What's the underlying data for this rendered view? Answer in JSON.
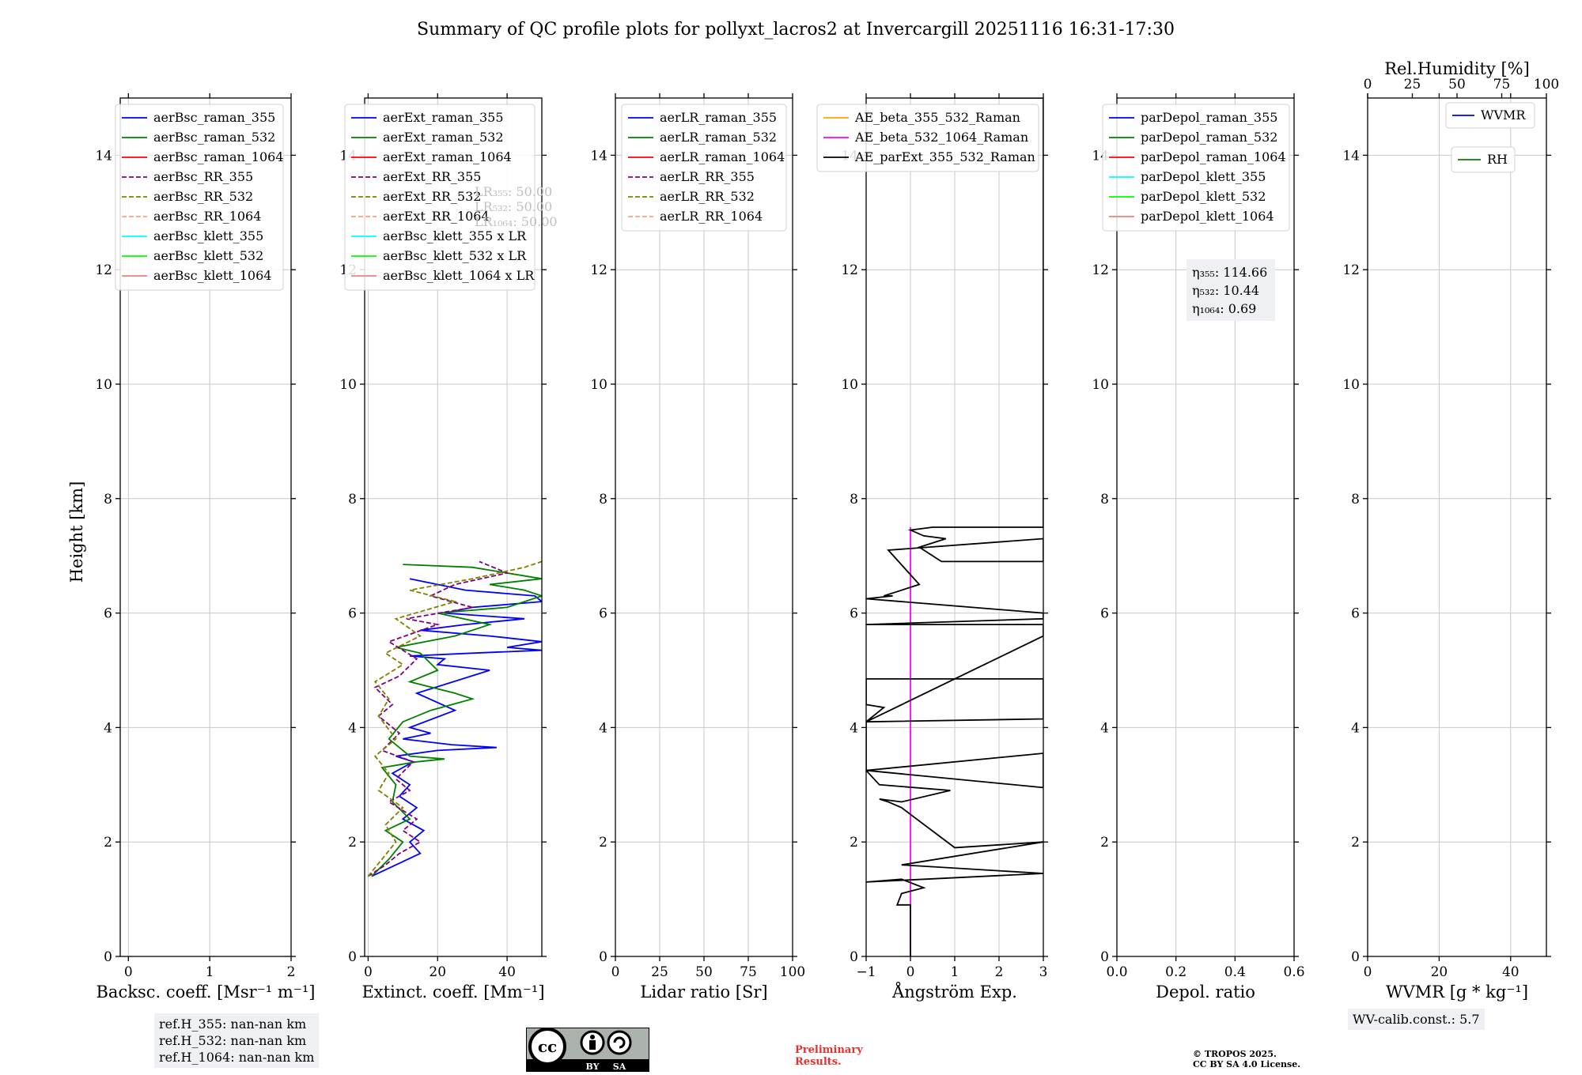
{
  "title": "Summary of QC profile plots for pollyxt_lacros2 at Invercargill 20251116 16:31-17:30",
  "ylabel": "Height [km]",
  "colors": {
    "raman_355": "#0000ff",
    "raman_532": "#008000",
    "raman_1064": "#ff0000",
    "rr_355": "#800080",
    "rr_532": "#808000",
    "rr_1064": "#ffa07a",
    "klett_355": "#00ffff",
    "klett_532": "#00ff00",
    "klett_1064": "#f08080",
    "ae_1": "#ffa500",
    "ae_2": "#ff00ff",
    "ae_3": "#000000"
  },
  "chart_data": [
    {
      "type": "line",
      "name": "backscatter",
      "xlabel": "Backsc. coeff. [Msr⁻¹ m⁻¹]",
      "xlim": [
        -0.1,
        2.0
      ],
      "ylim": [
        0,
        15
      ],
      "xticks": [
        0,
        1,
        2
      ],
      "yticks": [
        0,
        2,
        4,
        6,
        8,
        10,
        12,
        14
      ],
      "legend": [
        "aerBsc_raman_355",
        "aerBsc_raman_532",
        "aerBsc_raman_1064",
        "aerBsc_RR_355",
        "aerBsc_RR_532",
        "aerBsc_RR_1064",
        "aerBsc_klett_355",
        "aerBsc_klett_532",
        "aerBsc_klett_1064"
      ],
      "series": []
    },
    {
      "type": "line",
      "name": "extinction",
      "xlabel": "Extinct. coeff. [Mm⁻¹]",
      "xlim": [
        -1,
        50
      ],
      "ylim": [
        0,
        15
      ],
      "xticks": [
        0,
        20,
        40
      ],
      "yticks": [
        0,
        2,
        4,
        6,
        8,
        10,
        12,
        14
      ],
      "legend": [
        "aerExt_raman_355",
        "aerExt_raman_532",
        "aerExt_raman_1064",
        "aerExt_RR_355",
        "aerExt_RR_532",
        "aerExt_RR_1064",
        "aerBsc_klett_355 x LR",
        "aerBsc_klett_532 x LR",
        "aerBsc_klett_1064 x LR"
      ],
      "lr_labels": [
        "LR₃₅₅: 50.00",
        "LR₅₃₂: 50.00",
        "LR₁₀₆₄: 50.00"
      ],
      "series": [
        {
          "name": "aerExt_raman_355",
          "color_key": "raman_355",
          "style": "solid",
          "x": [
            1,
            8,
            15,
            12,
            16,
            10,
            14,
            9,
            12,
            7,
            13,
            8,
            20,
            37,
            24,
            10,
            18,
            12,
            25,
            14,
            35,
            20,
            22,
            12,
            30,
            50,
            40,
            50,
            35,
            15,
            28,
            45,
            22,
            30,
            50,
            48,
            28,
            12
          ],
          "y": [
            1.4,
            1.6,
            1.8,
            2.0,
            2.2,
            2.4,
            2.6,
            2.8,
            3.0,
            3.2,
            3.4,
            3.5,
            3.6,
            3.65,
            3.7,
            3.8,
            3.9,
            4.0,
            4.3,
            4.6,
            5.0,
            5.1,
            5.2,
            5.25,
            5.3,
            5.35,
            5.4,
            5.5,
            5.6,
            5.7,
            5.8,
            5.9,
            6.0,
            6.1,
            6.2,
            6.3,
            6.4,
            6.6
          ]
        },
        {
          "name": "aerExt_raman_532",
          "color_key": "raman_532",
          "style": "solid",
          "x": [
            1,
            6,
            10,
            5,
            12,
            7,
            8,
            4,
            14,
            22,
            12,
            6,
            10,
            18,
            30,
            25,
            12,
            20,
            15,
            8,
            25,
            35,
            20,
            40,
            50,
            45,
            35,
            50,
            30,
            10
          ],
          "y": [
            1.4,
            1.7,
            2.0,
            2.2,
            2.4,
            2.7,
            3.0,
            3.3,
            3.4,
            3.45,
            3.5,
            3.8,
            4.1,
            4.3,
            4.5,
            4.6,
            4.8,
            5.0,
            5.3,
            5.4,
            5.6,
            5.8,
            6.0,
            6.1,
            6.3,
            6.4,
            6.5,
            6.6,
            6.8,
            6.85
          ]
        },
        {
          "name": "aerExt_RR_355",
          "color_key": "rr_355",
          "style": "dashed",
          "x": [
            0,
            5,
            9,
            15,
            10,
            14,
            6,
            12,
            8,
            13,
            4,
            9,
            3,
            7,
            2,
            9,
            14,
            6,
            20,
            11,
            30,
            18,
            25,
            40,
            32
          ],
          "y": [
            1.4,
            1.6,
            1.8,
            2.0,
            2.2,
            2.4,
            2.7,
            2.9,
            3.1,
            3.4,
            3.6,
            3.9,
            4.2,
            4.4,
            4.7,
            4.9,
            5.2,
            5.5,
            5.8,
            5.9,
            6.1,
            6.3,
            6.5,
            6.7,
            6.9
          ]
        },
        {
          "name": "aerExt_RR_532",
          "color_key": "rr_532",
          "style": "dashed",
          "x": [
            0,
            4,
            8,
            5,
            10,
            3,
            6,
            2,
            8,
            3,
            6,
            2,
            10,
            5,
            15,
            8,
            25,
            12,
            30,
            45,
            50
          ],
          "y": [
            1.4,
            1.7,
            2.0,
            2.3,
            2.6,
            2.9,
            3.2,
            3.5,
            3.8,
            4.2,
            4.5,
            4.8,
            5.1,
            5.3,
            5.6,
            5.9,
            6.2,
            6.4,
            6.6,
            6.8,
            6.9
          ]
        }
      ]
    },
    {
      "type": "line",
      "name": "lidar_ratio",
      "xlabel": "Lidar ratio [Sr]",
      "xlim": [
        0,
        100
      ],
      "ylim": [
        0,
        15
      ],
      "xticks": [
        0,
        25,
        50,
        75,
        100
      ],
      "yticks": [
        0,
        2,
        4,
        6,
        8,
        10,
        12,
        14
      ],
      "legend": [
        "aerLR_raman_355",
        "aerLR_raman_532",
        "aerLR_raman_1064",
        "aerLR_RR_355",
        "aerLR_RR_532",
        "aerLR_RR_1064"
      ],
      "series": []
    },
    {
      "type": "line",
      "name": "angstrom",
      "xlabel": "Ångström Exp.",
      "xlim": [
        -1,
        3
      ],
      "ylim": [
        0,
        15
      ],
      "xticks": [
        -1,
        0,
        1,
        2,
        3
      ],
      "yticks": [
        0,
        2,
        4,
        6,
        8,
        10,
        12,
        14
      ],
      "legend": [
        "AE_beta_355_532_Raman",
        "AE_beta_532_1064_Raman",
        "AE_parExt_355_532_Raman"
      ],
      "series": [
        {
          "name": "AE_beta_532_1064_Raman",
          "color_key": "ae_2",
          "style": "solid",
          "x": [
            0,
            0
          ],
          "y": [
            0,
            7.5
          ]
        },
        {
          "name": "AE_parExt_355_532_Raman",
          "color_key": "ae_3",
          "style": "solid",
          "x": [
            0,
            0,
            -0.3,
            -0.2,
            0.3,
            -0.2,
            -1,
            3,
            3,
            -0.2,
            3,
            3,
            1.0,
            -0.2,
            -0.5,
            -0.7,
            -0.2,
            0.9,
            -0.7,
            -1,
            3,
            3,
            -1,
            -1,
            -0.6,
            -1,
            -1,
            3,
            3,
            -1,
            3,
            3,
            -1,
            3,
            3,
            -1,
            -0.4,
            -0.6,
            0.2,
            -0.5,
            3,
            3,
            0.7,
            0.2,
            0.8,
            0.3,
            0.0,
            0.5,
            3,
            3,
            0,
            0
          ],
          "y": [
            0,
            0.9,
            0.9,
            1.1,
            1.2,
            1.35,
            1.3,
            1.45,
            1.45,
            1.6,
            2.0,
            2.0,
            1.9,
            2.6,
            2.7,
            2.75,
            2.7,
            2.9,
            3.0,
            3.25,
            3.55,
            2.95,
            3.25,
            4.1,
            4.35,
            4.4,
            4.85,
            4.85,
            4.15,
            4.1,
            5.6,
            5.8,
            5.8,
            5.9,
            6.0,
            6.25,
            6.3,
            6.3,
            6.5,
            7.1,
            7.3,
            6.9,
            6.9,
            7.15,
            7.3,
            7.35,
            7.45,
            7.5,
            7.5,
            15,
            15,
            15
          ]
        }
      ]
    },
    {
      "type": "line",
      "name": "depolarization",
      "xlabel": "Depol. ratio",
      "xlim": [
        0,
        0.6
      ],
      "ylim": [
        0,
        15
      ],
      "xticks": [
        "0.0",
        "0.2",
        "0.4",
        "0.6"
      ],
      "yticks": [
        0,
        2,
        4,
        6,
        8,
        10,
        12,
        14
      ],
      "legend": [
        "parDepol_raman_355",
        "parDepol_raman_532",
        "parDepol_raman_1064",
        "parDepol_klett_355",
        "parDepol_klett_532",
        "parDepol_klett_1064"
      ],
      "eta": [
        "η₃₅₅: 114.66",
        "η₅₃₂: 10.44",
        "η₁₀₆₄: 0.69"
      ],
      "series": []
    },
    {
      "type": "line",
      "name": "water_vapor",
      "xlabel": "WVMR [g * kg⁻¹]",
      "xlim": [
        0,
        50
      ],
      "ylim": [
        0,
        15
      ],
      "xticks": [
        0,
        20,
        40
      ],
      "yticks": [
        0,
        2,
        4,
        6,
        8,
        10,
        12,
        14
      ],
      "top_xlabel": "Rel.Humidity [%]",
      "top_xlim": [
        0,
        100
      ],
      "top_xticks": [
        0,
        25,
        50,
        75,
        100
      ],
      "legend": [
        "WVMR",
        "RH"
      ],
      "series": []
    }
  ],
  "footer": {
    "ref_heights": [
      "ref.H_355: nan-nan km",
      "ref.H_532: nan-nan km",
      "ref.H_1064: nan-nan km"
    ],
    "wv_calib": "WV-calib.const.: 5.7",
    "prelim": [
      "Preliminary",
      "Results."
    ],
    "copyright": [
      "© TROPOS 2025.",
      "CC BY SA 4.0 License."
    ],
    "cc_text": {
      "cc": "cc",
      "by": "BY",
      "sa": "SA"
    }
  }
}
